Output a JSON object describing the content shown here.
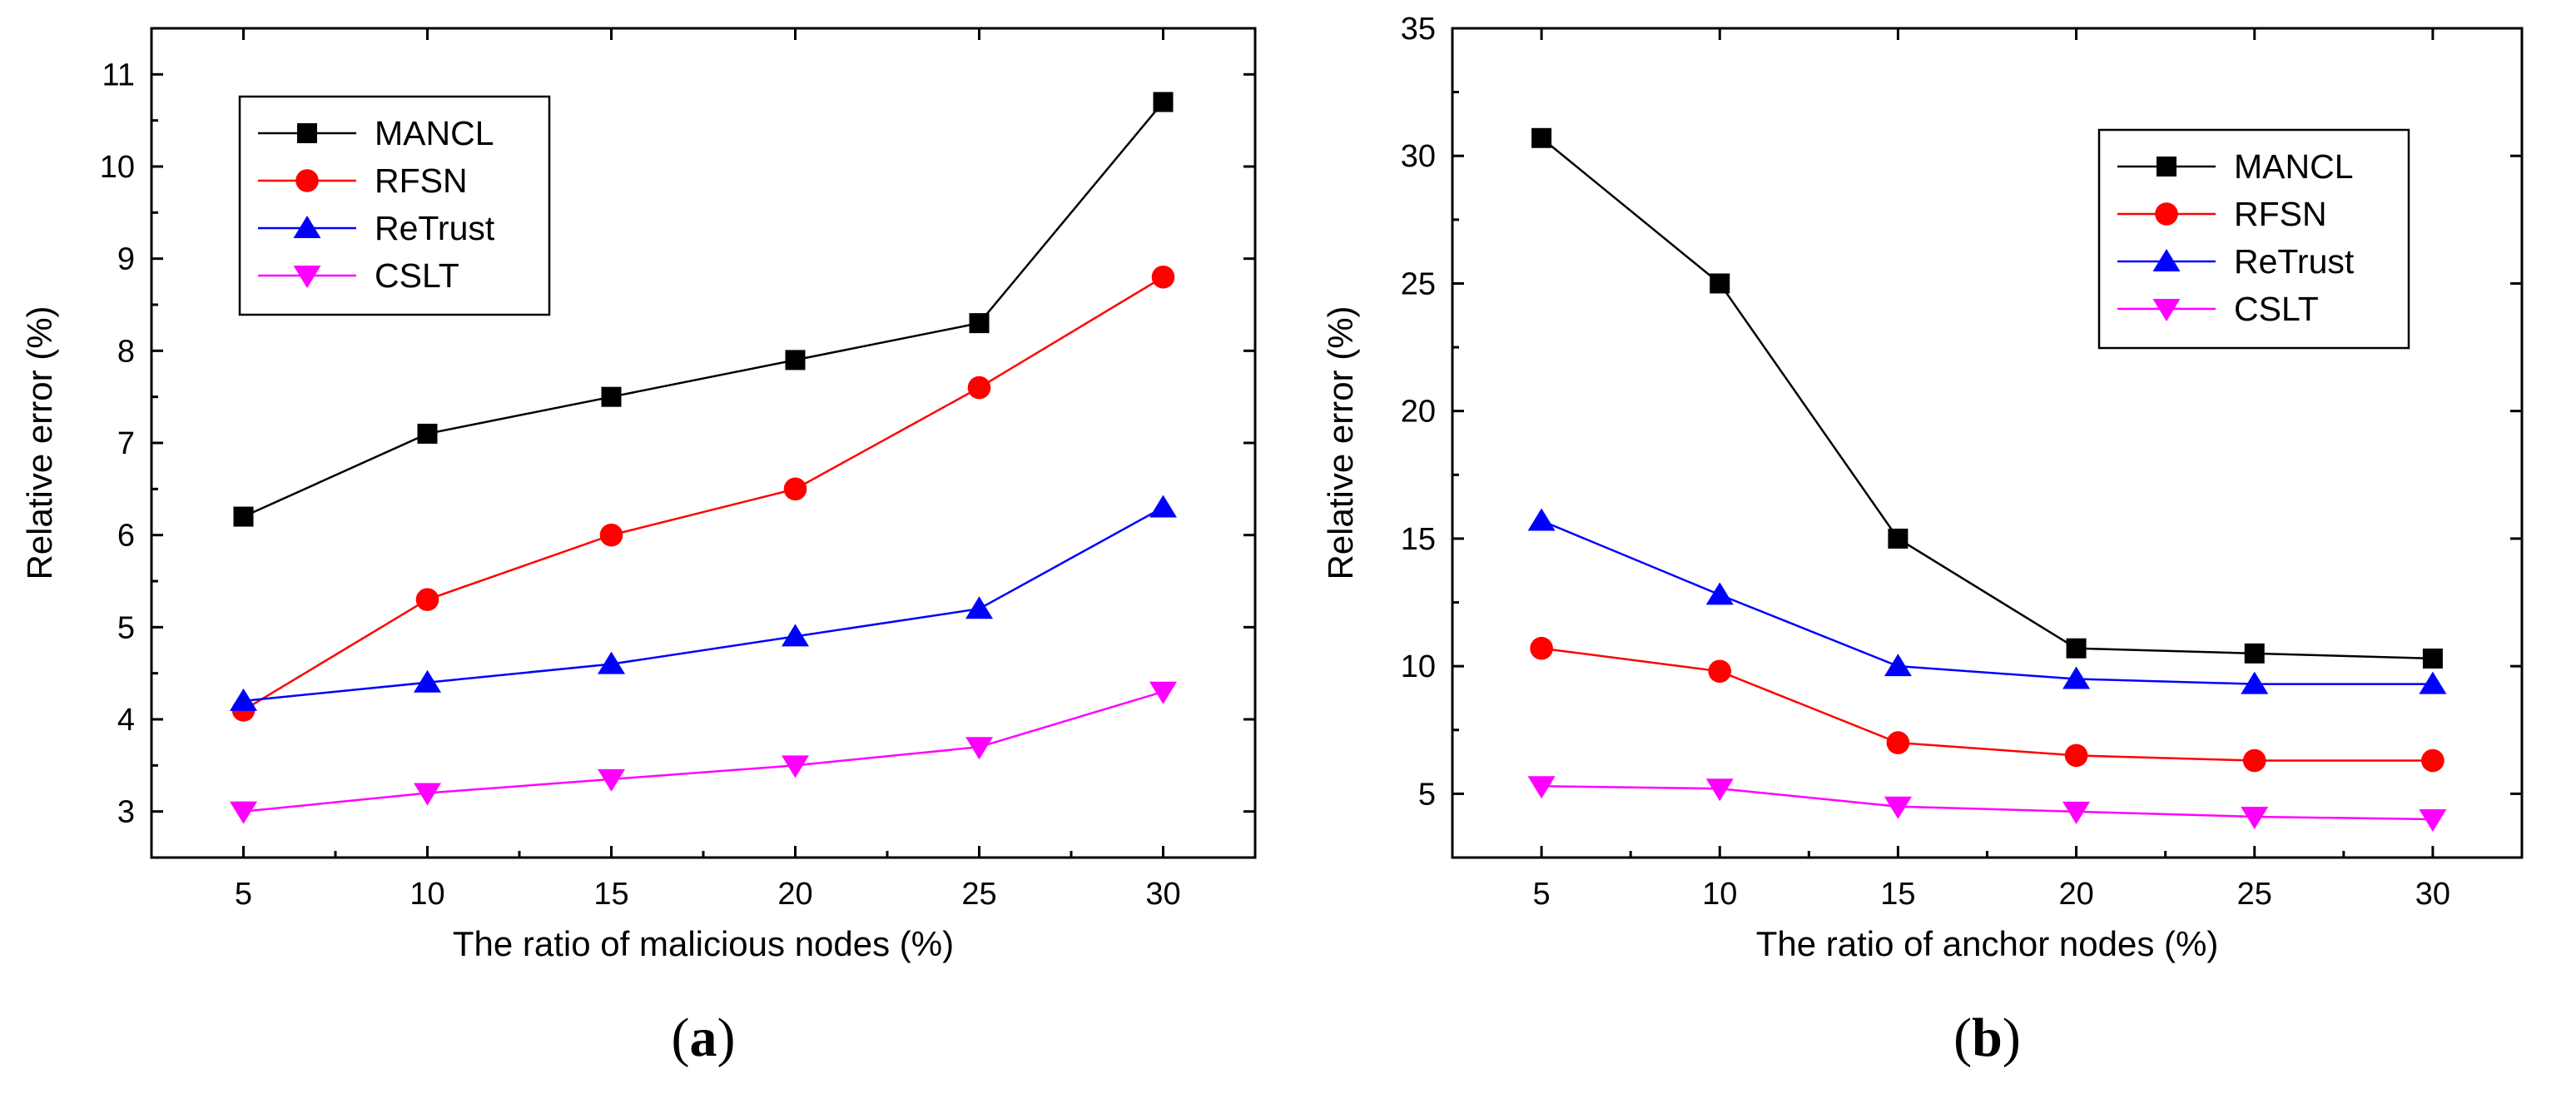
{
  "chart_data": [
    {
      "type": "line",
      "panel_label": "(a)",
      "panel_letter": "a",
      "xlabel": "The ratio of malicious nodes (%)",
      "ylabel": "Relative error (%)",
      "x": [
        5,
        10,
        15,
        20,
        25,
        30
      ],
      "xlim": [
        2.5,
        32.5
      ],
      "ylim": [
        2.5,
        11.5
      ],
      "xticks": [
        5,
        10,
        15,
        20,
        25,
        30
      ],
      "yticks": [
        3,
        4,
        5,
        6,
        7,
        8,
        9,
        10,
        11
      ],
      "legend_position": "top-left",
      "series": [
        {
          "name": "MANCL",
          "color": "#000000",
          "marker": "square",
          "values": [
            6.2,
            7.1,
            7.5,
            7.9,
            8.3,
            10.7
          ]
        },
        {
          "name": "RFSN",
          "color": "#ff0000",
          "marker": "circle",
          "values": [
            4.1,
            5.3,
            6.0,
            6.5,
            7.6,
            8.8
          ]
        },
        {
          "name": "ReTrust",
          "color": "#0000ff",
          "marker": "triangle-up",
          "values": [
            4.2,
            4.4,
            4.6,
            4.9,
            5.2,
            6.3
          ]
        },
        {
          "name": "CSLT",
          "color": "#ff00ff",
          "marker": "triangle-down",
          "values": [
            3.0,
            3.2,
            3.35,
            3.5,
            3.7,
            4.3
          ]
        }
      ]
    },
    {
      "type": "line",
      "panel_label": "(b)",
      "panel_letter": "b",
      "xlabel": "The ratio of anchor nodes (%)",
      "ylabel": "Relative error (%)",
      "x": [
        5,
        10,
        15,
        20,
        25,
        30
      ],
      "xlim": [
        2.5,
        32.5
      ],
      "ylim": [
        2.5,
        35
      ],
      "xticks": [
        5,
        10,
        15,
        20,
        25,
        30
      ],
      "yticks": [
        5,
        10,
        15,
        20,
        25,
        30,
        35
      ],
      "legend_position": "top-right",
      "series": [
        {
          "name": "MANCL",
          "color": "#000000",
          "marker": "square",
          "values": [
            30.7,
            25.0,
            15.0,
            10.7,
            10.5,
            10.3
          ]
        },
        {
          "name": "RFSN",
          "color": "#ff0000",
          "marker": "circle",
          "values": [
            10.7,
            9.8,
            7.0,
            6.5,
            6.3,
            6.3
          ]
        },
        {
          "name": "ReTrust",
          "color": "#0000ff",
          "marker": "triangle-up",
          "values": [
            15.7,
            12.8,
            10.0,
            9.5,
            9.3,
            9.3
          ]
        },
        {
          "name": "CSLT",
          "color": "#ff00ff",
          "marker": "triangle-down",
          "values": [
            5.3,
            5.2,
            4.5,
            4.3,
            4.1,
            4.0
          ]
        }
      ]
    }
  ]
}
